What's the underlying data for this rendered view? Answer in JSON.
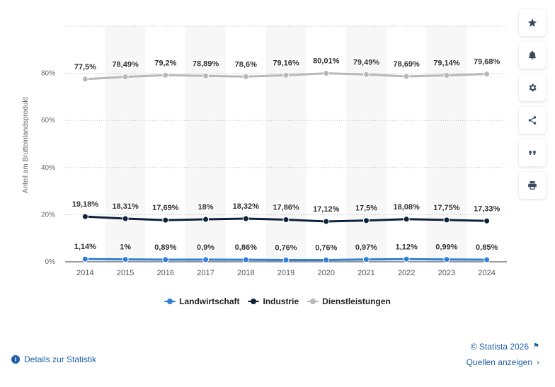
{
  "chart_data": {
    "type": "line",
    "ylabel": "Anteil am Bruttoinlandsprodukt",
    "ylim": [
      0,
      100
    ],
    "y_ticks": [
      "0%",
      "20%",
      "40%",
      "60%",
      "80%"
    ],
    "x": [
      "2014",
      "2015",
      "2016",
      "2017",
      "2018",
      "2019",
      "2020",
      "2021",
      "2022",
      "2023",
      "2024"
    ],
    "series": [
      {
        "name": "Landwirtschaft",
        "color": "#2f7ed8",
        "values": [
          1.14,
          1,
          0.89,
          0.9,
          0.86,
          0.76,
          0.76,
          0.97,
          1.12,
          0.99,
          0.85
        ],
        "labels": [
          "1,14%",
          "1%",
          "0,89%",
          "0,9%",
          "0,86%",
          "0,76%",
          "0,76%",
          "0,97%",
          "1,12%",
          "0,99%",
          "0,85%"
        ]
      },
      {
        "name": "Industrie",
        "color": "#0d233a",
        "values": [
          19.18,
          18.31,
          17.69,
          18,
          18.32,
          17.86,
          17.12,
          17.5,
          18.08,
          17.75,
          17.33
        ],
        "labels": [
          "19,18%",
          "18,31%",
          "17,69%",
          "18%",
          "18,32%",
          "17,86%",
          "17,12%",
          "17,5%",
          "18,08%",
          "17,75%",
          "17,33%"
        ]
      },
      {
        "name": "Dienstleistungen",
        "color": "#b8b8b8",
        "values": [
          77.5,
          78.49,
          79.2,
          78.89,
          78.6,
          79.16,
          80.01,
          79.49,
          78.69,
          79.14,
          79.68
        ],
        "labels": [
          "77,5%",
          "78,49%",
          "79,2%",
          "78,89%",
          "78,6%",
          "79,16%",
          "80,01%",
          "79,49%",
          "78,69%",
          "79,14%",
          "79,68%"
        ]
      }
    ],
    "legend_position": "bottom",
    "grid": true
  },
  "sidebar": {
    "icons": [
      "star-icon",
      "bell-icon",
      "gear-icon",
      "share-icon",
      "quote-icon",
      "print-icon"
    ]
  },
  "footer": {
    "details_link": "Details zur Statistik",
    "copyright": "© Statista 2026",
    "sources_link": "Quellen anzeigen"
  }
}
